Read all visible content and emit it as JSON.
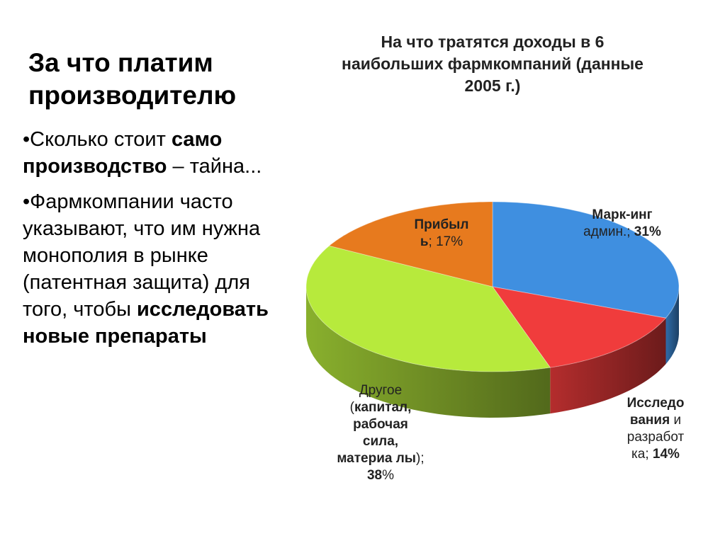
{
  "slide": {
    "title": "За что платим производителю",
    "bullets": [
      {
        "parts": [
          {
            "text": "•Сколько стоит ",
            "bold": false
          },
          {
            "text": "само производство",
            "bold": true
          },
          {
            "text": " – тайна...",
            "bold": false
          }
        ]
      },
      {
        "parts": [
          {
            "text": "•Фармкомпании часто указывают, что им нужна монополия в рынке (патентная защита) для того, чтобы ",
            "bold": false
          },
          {
            "text": "исследовать новые препараты",
            "bold": true
          }
        ]
      }
    ]
  },
  "chart_data": {
    "type": "pie",
    "title": "На что тратятся доходы в 6 наибольших фармкомпаний (данные 2005 г.)",
    "slices": [
      {
        "name": "Марк-инг админ.",
        "value": 31,
        "color": "#3f8fe0",
        "label_parts": [
          {
            "text": "Марк-инг",
            "bold": true
          },
          {
            "text": " админ.;",
            "bold": false
          },
          {
            "text": " 31%",
            "bold": true
          }
        ]
      },
      {
        "name": "Исследования и разработка",
        "value": 14,
        "color": "#f03c3c",
        "label_parts": [
          {
            "text": "Исследо вания",
            "bold": true
          },
          {
            "text": " и разработ ка; ",
            "bold": false
          },
          {
            "text": "14%",
            "bold": true
          }
        ]
      },
      {
        "name": "Другое (капитал, рабочая сила, материалы)",
        "value": 38,
        "color": "#b7ea3c",
        "label_parts": [
          {
            "text": "Другое (",
            "bold": false
          },
          {
            "text": "капитал, рабочая сила, материа лы",
            "bold": true
          },
          {
            "text": "); ",
            "bold": false
          },
          {
            "text": "38",
            "bold": true
          },
          {
            "text": "%",
            "bold": false
          }
        ]
      },
      {
        "name": "Прибыль",
        "value": 17,
        "color": "#e77a1e",
        "label_parts": [
          {
            "text": "Прибыл ь",
            "bold": true
          },
          {
            "text": "; 17%",
            "bold": false
          }
        ]
      }
    ],
    "style": "3d-tilted",
    "legend": "none"
  }
}
